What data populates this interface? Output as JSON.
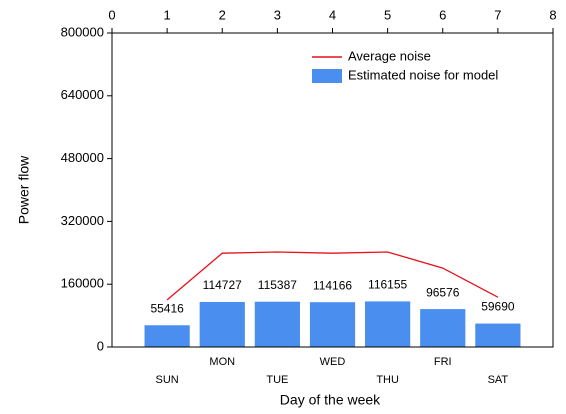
{
  "chart_data": {
    "type": "bar",
    "x_label": "Day of the week",
    "y_label": "Power flow",
    "x": [
      1,
      2,
      3,
      4,
      5,
      6,
      7
    ],
    "categories": [
      "SUN",
      "MON",
      "TUE",
      "WED",
      "THU",
      "FRI",
      "SAT"
    ],
    "series": [
      {
        "name": "Average noise",
        "type": "line",
        "color": "#e8101a",
        "values": [
          120000,
          239000,
          242000,
          239000,
          242000,
          201000,
          127000
        ]
      },
      {
        "name": "Estimated noise for model",
        "type": "bar",
        "color": "#4a8eef",
        "values": [
          55416,
          114727,
          115387,
          114166,
          116155,
          96576,
          59690
        ]
      }
    ],
    "xlim": [
      0,
      8
    ],
    "xticks": [
      0,
      1,
      2,
      3,
      4,
      5,
      6,
      7,
      8
    ],
    "ylim": [
      0,
      800000
    ],
    "yticks": [
      0,
      160000,
      320000,
      480000,
      640000,
      800000
    ],
    "grid": false,
    "legend": "upper right"
  }
}
